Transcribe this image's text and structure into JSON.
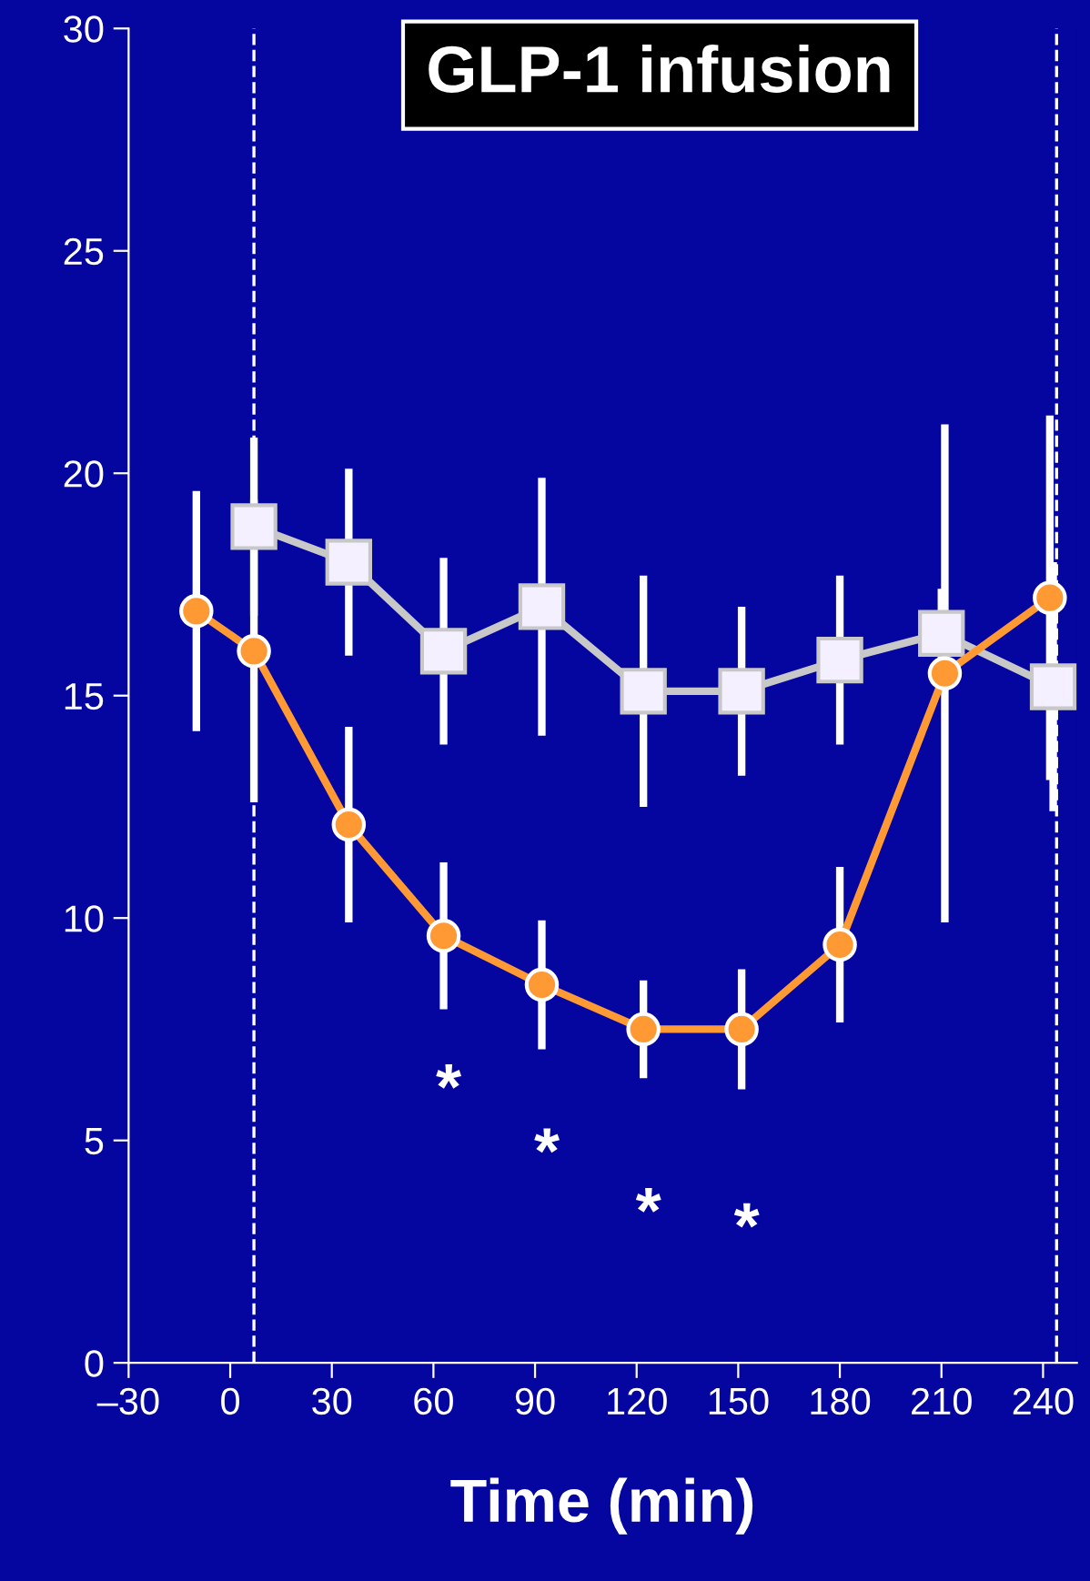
{
  "chart_data": {
    "type": "line",
    "xlabel": "Time (min)",
    "xlim": [
      -30,
      250
    ],
    "ylim": [
      0,
      30
    ],
    "xticks": [
      {
        "value": -30,
        "label": "–30"
      },
      0,
      30,
      60,
      90,
      120,
      150,
      180,
      210,
      240
    ],
    "yticks": [
      0,
      5,
      10,
      15,
      20,
      25,
      30
    ],
    "grid": false,
    "legend": false,
    "line_style": "solid",
    "series": [
      {
        "color": "#c8c8c8",
        "marker": "square",
        "x": [
          7,
          35,
          63,
          92,
          122,
          151,
          180,
          210,
          243
        ],
        "values": [
          18.8,
          18.0,
          16.0,
          17.0,
          15.1,
          15.1,
          15.8,
          16.4,
          15.2
        ],
        "errors": [
          2.0,
          2.1,
          2.1,
          2.9,
          2.6,
          1.9,
          1.9,
          1.0,
          2.8
        ]
      },
      {
        "color": "#ff9933",
        "marker": "circle",
        "x": [
          -10,
          7,
          35,
          63,
          92,
          122,
          151,
          180,
          211,
          242
        ],
        "values": [
          16.9,
          16.0,
          12.1,
          9.6,
          8.5,
          7.5,
          7.5,
          9.4,
          15.5,
          17.2
        ],
        "errors": [
          2.7,
          3.4,
          2.2,
          1.65,
          1.45,
          1.1,
          1.35,
          1.75,
          5.6,
          4.1
        ]
      }
    ],
    "ref_lines": [
      {
        "axis": "x",
        "value": 7,
        "line_style": "dashed",
        "color": "#ffffff"
      },
      {
        "axis": "x",
        "value": 244,
        "line_style": "dashed",
        "color": "#ffffff"
      }
    ],
    "title": "GLP-1 infusion",
    "annotations": [
      {
        "text": "*",
        "x": 63,
        "y": 9.6
      },
      {
        "text": "*",
        "x": 92,
        "y": 8.5
      },
      {
        "text": "*",
        "x": 122,
        "y": 7.5
      },
      {
        "text": "*",
        "x": 151,
        "y": 7.5
      }
    ]
  }
}
